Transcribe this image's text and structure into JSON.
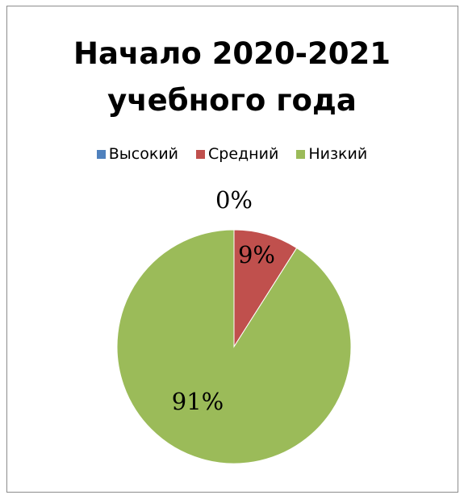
{
  "chart_data": {
    "type": "pie",
    "title": [
      "Начало 2020-2021",
      "учебного года"
    ],
    "categories": [
      "Высокий",
      "Средний",
      "Низкий"
    ],
    "values": [
      0,
      9,
      91
    ],
    "labels": [
      "0%",
      "9%",
      "91%"
    ],
    "colors": [
      "#4f81bd",
      "#c0504d",
      "#9bbb59"
    ],
    "legend_position": "top"
  }
}
